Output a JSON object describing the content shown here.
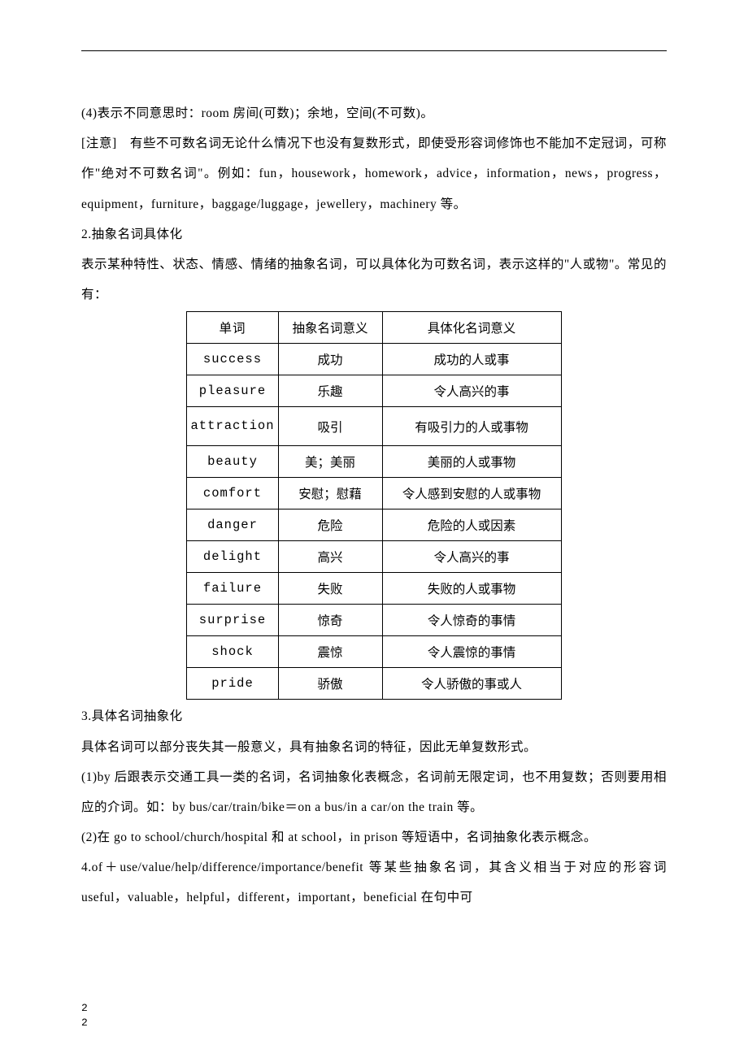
{
  "body": {
    "p1": "(4)表示不同意思时：room 房间(可数)；余地，空间(不可数)。",
    "p2": "[注意]　有些不可数名词无论什么情况下也没有复数形式，即使受形容词修饰也不能加不定冠词，可称作\"绝对不可数名词\"。例如：fun，housework，homework，advice，information，news，progress，equipment，furniture，baggage/luggage，jewellery，machinery 等。",
    "p3": "2.抽象名词具体化",
    "p4": "表示某种特性、状态、情感、情绪的抽象名词，可以具体化为可数名词，表示这样的\"人或物\"。常见的有：",
    "p5": "3.具体名词抽象化",
    "p6": "具体名词可以部分丧失其一般意义，具有抽象名词的特征，因此无单复数形式。",
    "p7": "(1)by 后跟表示交通工具一类的名词，名词抽象化表概念，名词前无限定词，也不用复数；否则要用相应的介词。如：by bus/car/train/bike＝on a bus/in a car/on the train 等。",
    "p8": "(2)在 go to school/church/hospital 和 at school，in prison 等短语中，名词抽象化表示概念。",
    "p9": "4.of＋use/value/help/difference/importance/benefit 等某些抽象名词，其含义相当于对应的形容词 useful，valuable，helpful，different，important，beneficial 在句中可"
  },
  "table": {
    "columns": [
      "单词",
      "抽象名词意义",
      "具体化名词意义"
    ],
    "rows": [
      [
        "success",
        "成功",
        "成功的人或事"
      ],
      [
        "pleasure",
        "乐趣",
        "令人高兴的事"
      ],
      [
        "attraction",
        "吸引",
        "有吸引力的人或事物"
      ],
      [
        "beauty",
        "美；美丽",
        "美丽的人或事物"
      ],
      [
        "comfort",
        "安慰；慰藉",
        "令人感到安慰的人或事物"
      ],
      [
        "danger",
        "危险",
        "危险的人或因素"
      ],
      [
        "delight",
        "高兴",
        "令人高兴的事"
      ],
      [
        "failure",
        "失败",
        "失败的人或事物"
      ],
      [
        "surprise",
        "惊奇",
        "令人惊奇的事情"
      ],
      [
        "shock",
        "震惊",
        "令人震惊的事情"
      ],
      [
        "pride",
        "骄傲",
        "令人骄傲的事或人"
      ]
    ]
  },
  "footer": {
    "num1": "2",
    "num2": "2"
  }
}
